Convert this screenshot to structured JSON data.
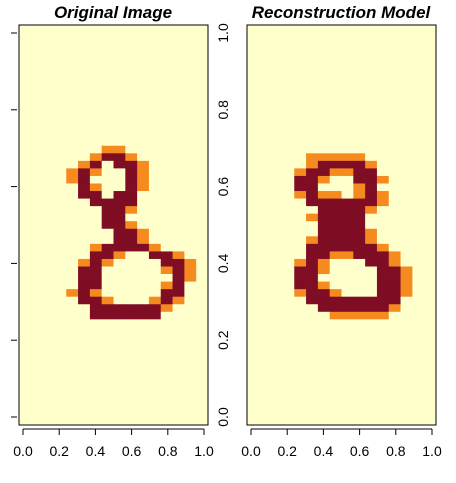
{
  "chart_data": [
    {
      "type": "heatmap",
      "title": "Original Image",
      "colormap": "heat",
      "xlim": [
        0,
        1
      ],
      "ylim": [
        0,
        1
      ],
      "x_ticks": [
        "0.0",
        "0.2",
        "0.4",
        "0.6",
        "0.8",
        "1.0"
      ],
      "y_ticks": [
        "0.0",
        "0.2",
        "0.4",
        "0.6",
        "0.8",
        "1.0"
      ],
      "grid": false,
      "rows": [
        "................",
        "................",
        "................",
        "................",
        "................",
        "................",
        "................",
        "................",
        "................",
        "................",
        "................",
        "................",
        "................",
        "................",
        "................",
        "................",
        ".......oo.......",
        "......oXXo......",
        ".....oX.XXo.....",
        "....oXo..Xo.....",
        "....oX...Xo.....",
        ".....Xo..Xo.....",
        ".....XX.XX......",
        "......XXXX......",
        ".......XXo......",
        ".......XX.......",
        ".......XXo......",
        "........XXo.....",
        "........XXo.....",
        "......oXXXXo....",
        "......XXo..XXo..",
        ".....oXo....XXo.",
        ".....XX.....oXo.",
        ".....XX......Xo.",
        ".....XX.....oX..",
        "....oXo.....XX..",
        ".....XXo...oXo..",
        "......XXXXXXo...",
        "......XXXXXX....",
        "................",
        "................",
        "................",
        "................",
        "................",
        "................",
        "................",
        "................",
        "................",
        "................",
        "................",
        "................",
        "................",
        "................"
      ]
    },
    {
      "type": "heatmap",
      "title": "Reconstruction Model",
      "colormap": "heat",
      "xlim": [
        0,
        1
      ],
      "ylim": [
        0,
        1
      ],
      "x_ticks": [
        "0.0",
        "0.2",
        "0.4",
        "0.6",
        "0.8",
        "1.0"
      ],
      "y_ticks": [
        "0.0",
        "0.2",
        "0.4",
        "0.6",
        "0.8",
        "1.0"
      ],
      "grid": false,
      "rows": [
        "................",
        "................",
        "................",
        "................",
        "................",
        "................",
        "................",
        "................",
        "................",
        "................",
        "................",
        "................",
        "................",
        "................",
        "................",
        "................",
        "................",
        ".....ooooo......",
        ".....oXXXXo.....",
        "....oXXooXX.....",
        "....XXo..XXo....",
        "....XX...oX.....",
        "....oXoo.oXo....",
        ".....XXXXXXo....",
        "......XXXXo.....",
        ".....oXXXX......",
        "......XXXX......",
        "......XXXXo.....",
        ".....oXXXXo.....",
        ".....XXXXXXo....",
        ".....XXooXXXo...",
        "....oXo...XXo...",
        "....XXo....XXo..",
        "....XX.....XXo..",
        "....XXo....XXo..",
        "....oXXo...XXo..",
        ".....XXXXXXXX...",
        "......XXXXXXo...",
        ".......ooooo....",
        "................",
        "................",
        "................",
        "................",
        "................",
        "................",
        "................",
        "................",
        "................",
        "................",
        "................",
        "................",
        "................",
        "................"
      ]
    }
  ],
  "colors": {
    "background_low": "#ffffcc",
    "low_mid": "#fff0a0",
    "mid": "#fed976",
    "mid_high": "#f58a1f",
    "high": "#c32a12",
    "peak": "#7f0d23"
  }
}
